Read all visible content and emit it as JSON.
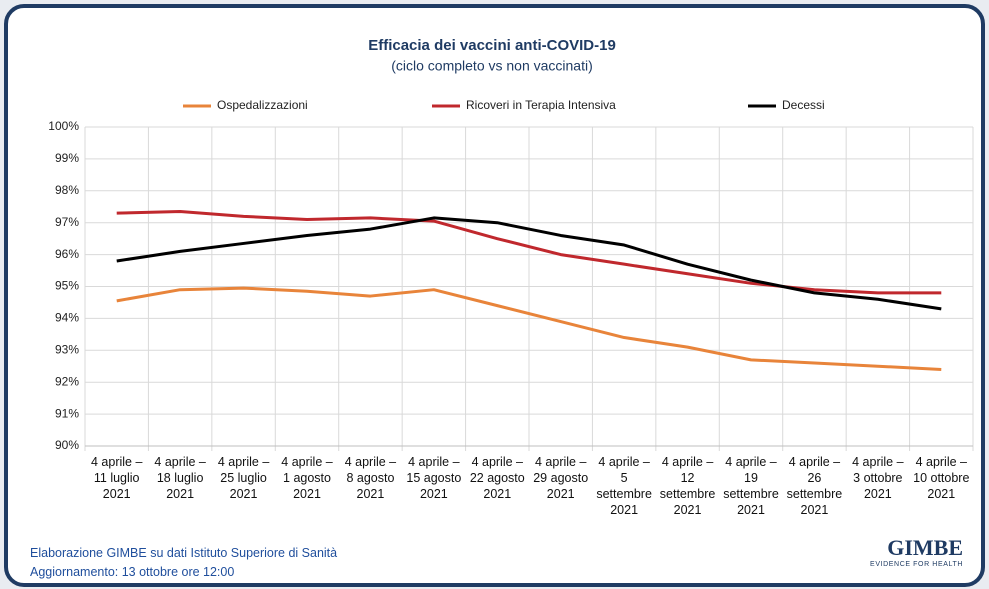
{
  "chart_data": {
    "type": "line",
    "title": "Efficacia dei vaccini anti-COVID-19",
    "subtitle": "(ciclo completo vs non vaccinati)",
    "categories": [
      "4 aprile –\n11 luglio\n2021",
      "4 aprile –\n18 luglio\n2021",
      "4 aprile –\n25 luglio\n2021",
      "4 aprile –\n1 agosto\n2021",
      "4 aprile –\n8 agosto\n2021",
      "4 aprile –\n15 agosto\n2021",
      "4 aprile –\n22 agosto\n2021",
      "4 aprile –\n29 agosto\n2021",
      "4 aprile –\n5\nsettembre\n2021",
      "4 aprile –\n12\nsettembre\n2021",
      "4 aprile –\n19\nsettembre\n2021",
      "4 aprile –\n26\nsettembre\n2021",
      "4 aprile –\n3 ottobre\n2021",
      "4 aprile –\n10 ottobre\n2021"
    ],
    "series": [
      {
        "name": "Ospedalizzazioni",
        "color": "#e8843a",
        "values": [
          94.55,
          94.9,
          94.95,
          94.85,
          94.7,
          94.9,
          94.4,
          93.9,
          93.4,
          93.1,
          92.7,
          92.6,
          92.5,
          92.4
        ]
      },
      {
        "name": "Ricoveri in Terapia Intensiva",
        "color": "#c0282d",
        "values": [
          97.3,
          97.35,
          97.2,
          97.1,
          97.15,
          97.05,
          96.5,
          96.0,
          95.7,
          95.4,
          95.1,
          94.9,
          94.8,
          94.8
        ]
      },
      {
        "name": "Decessi",
        "color": "#000000",
        "values": [
          95.8,
          96.1,
          96.35,
          96.6,
          96.8,
          97.15,
          97.0,
          96.6,
          96.3,
          95.7,
          95.2,
          94.8,
          94.6,
          94.3
        ]
      }
    ],
    "ylim": [
      90,
      100
    ],
    "yticks": [
      {
        "value": 90,
        "label": "90%"
      },
      {
        "value": 91,
        "label": "91%"
      },
      {
        "value": 92,
        "label": "92%"
      },
      {
        "value": 93,
        "label": "93%"
      },
      {
        "value": 94,
        "label": "94%"
      },
      {
        "value": 95,
        "label": "95%"
      },
      {
        "value": 96,
        "label": "96%"
      },
      {
        "value": 97,
        "label": "97%"
      },
      {
        "value": 98,
        "label": "98%"
      },
      {
        "value": 99,
        "label": "99%"
      },
      {
        "value": 100,
        "label": "100%"
      }
    ],
    "grid": true,
    "legend": "top"
  },
  "footer": {
    "source": "Elaborazione GIMBE su dati Istituto Superiore di Sanità",
    "update": "Aggiornamento: 13 ottobre ore 12:00",
    "logo": "GIMBE",
    "logo_tagline": "EVIDENCE FOR HEALTH"
  }
}
